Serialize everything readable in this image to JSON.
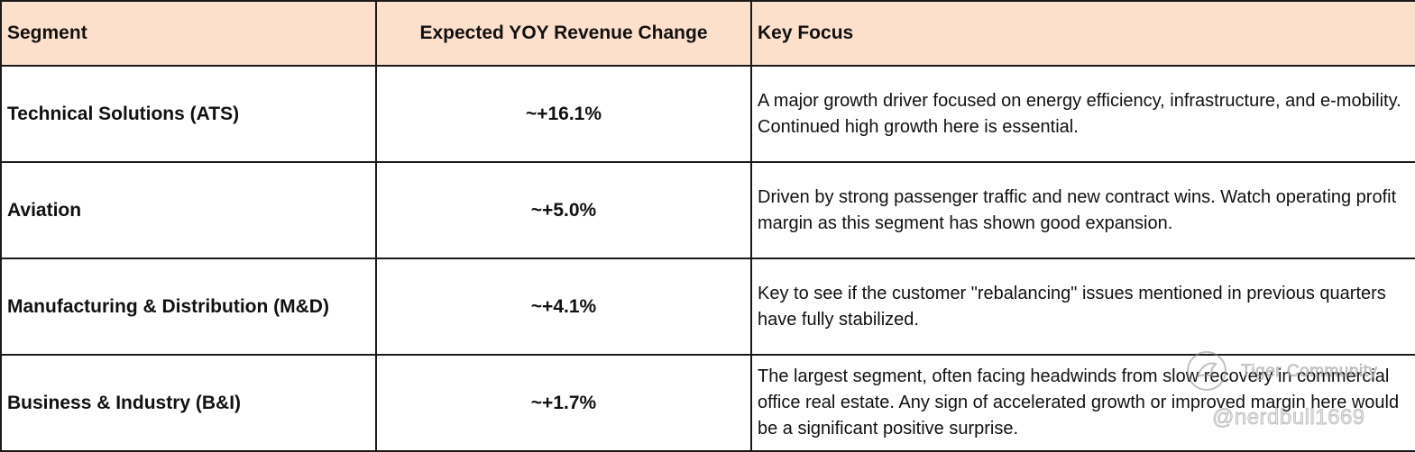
{
  "table": {
    "headers": {
      "segment": "Segment",
      "change": "Expected YOY Revenue Change",
      "focus": "Key Focus"
    },
    "rows": [
      {
        "segment": "Technical Solutions (ATS)",
        "change": "~+16.1%",
        "focus": "A major growth driver focused on energy efficiency, infrastructure, and e-mobility. Continued high growth here is essential."
      },
      {
        "segment": "Aviation",
        "change": "~+5.0%",
        "focus": "Driven by strong passenger traffic and new contract wins. Watch operating profit margin as this segment has shown good expansion."
      },
      {
        "segment": "Manufacturing & Distribution (M&D)",
        "change": "~+4.1%",
        "focus": "Key to see if the customer \"rebalancing\" issues mentioned in previous quarters have fully stabilized."
      },
      {
        "segment": "Business & Industry (B&I)",
        "change": "~+1.7%",
        "focus": "The largest segment, often facing headwinds from slow recovery in commercial office real estate. Any sign of accelerated growth or improved margin here would be a significant positive surprise."
      }
    ]
  },
  "watermark": {
    "brand": "Tiger Community",
    "handle": "@nerdbull1669",
    "logo_icon": "tiger-logo-icon"
  },
  "colors": {
    "header_bg": "#fde0cc",
    "border": "#1a1a1a",
    "text": "#111111"
  }
}
